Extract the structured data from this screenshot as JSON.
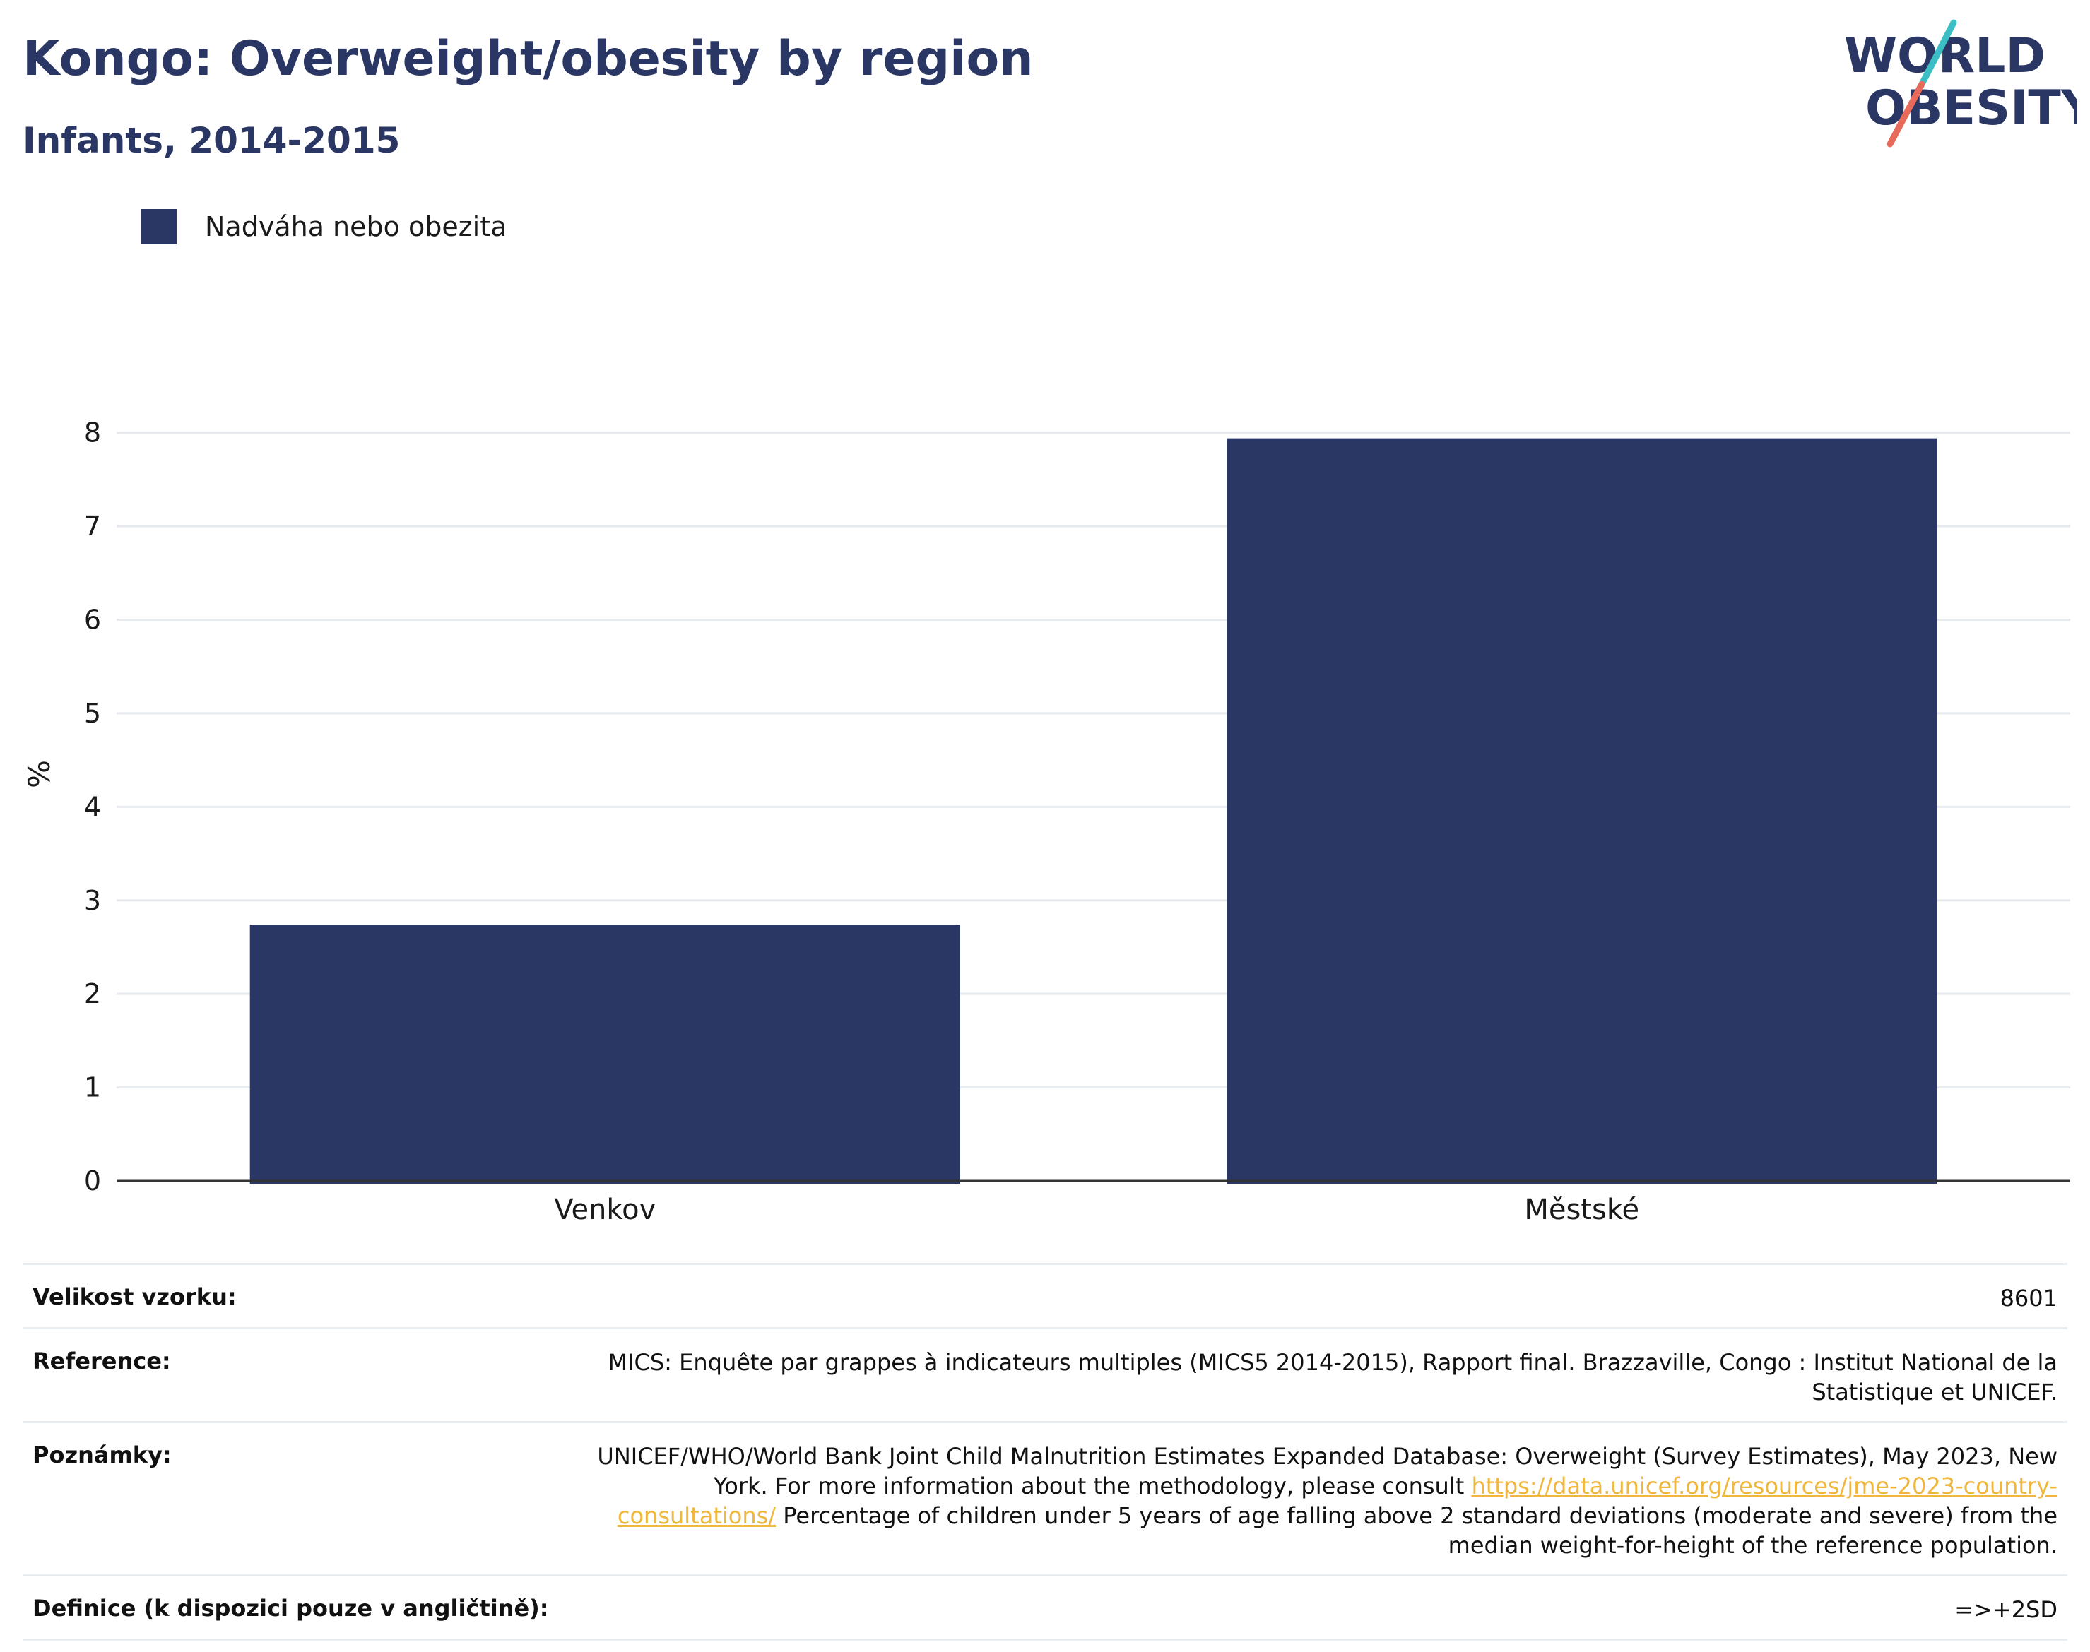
{
  "header": {
    "title": "Kongo: Overweight/obesity by region",
    "subtitle": "Infants, 2014-2015"
  },
  "logo": {
    "line1": "WORLD",
    "line2": "OBESITY",
    "colors": {
      "text": "#2a3663",
      "slash_top": "#3bbfc4",
      "slash_bottom": "#e86a5a"
    }
  },
  "colors": {
    "bar": "#2a3663",
    "grid": "#e6e9ee",
    "axis": "#333333"
  },
  "chart_data": {
    "type": "bar",
    "categories": [
      "Venkov",
      "Městské"
    ],
    "series": [
      {
        "name": "Nadváha nebo obezita",
        "values": [
          2.74,
          7.94
        ]
      }
    ],
    "ylabel": "%",
    "ylim": [
      0,
      8.7
    ],
    "yticks": [
      0,
      1,
      2,
      3,
      4,
      5,
      6,
      7,
      8
    ],
    "grid": true,
    "legend": "top-left"
  },
  "info": {
    "rows": [
      {
        "label": "Velikost vzorku:",
        "value": "8601"
      },
      {
        "label": "Reference:",
        "value": "MICS: Enquête par grappes à indicateurs multiples (MICS5 2014-2015), Rapport final. Brazzaville, Congo : Institut National de la Statistique et UNICEF."
      },
      {
        "label": "Poznámky:",
        "value_before": "UNICEF/WHO/World Bank Joint Child Malnutrition Estimates Expanded Database: Overweight (Survey Estimates), May 2023, New York. For more information about the methodology, please consult ",
        "link": "https://data.unicef.org/resources/jme-2023-country-consultations/",
        "value_after": " Percentage of children under 5 years of age falling above 2 standard deviations (moderate and severe) from the median weight-for-height of the reference population."
      },
      {
        "label": "Definice (k dispozici pouze v angličtině):",
        "value": "=>+2SD"
      }
    ]
  }
}
